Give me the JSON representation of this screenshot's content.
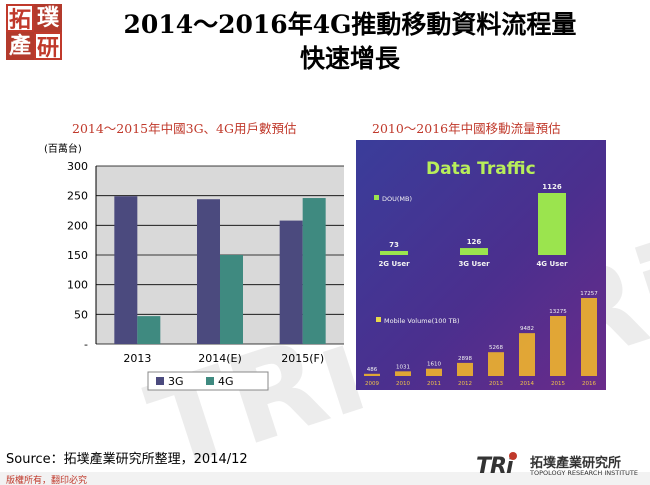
{
  "header": {
    "logo": {
      "chars": [
        "拓",
        "璞",
        "產",
        "研"
      ],
      "color": "#c0392b"
    },
    "title_line1": "2014～2016年4G推動移動資料流程量",
    "title_line2": "快速增長"
  },
  "chart_data": [
    {
      "type": "bar",
      "title": "2014～2015年中國3G、4G用戶數預估",
      "ylabel": "(百萬台)",
      "categories": [
        "2013",
        "2014(E)",
        "2015(F)"
      ],
      "series": [
        {
          "name": "3G",
          "values": [
            249,
            244,
            208
          ],
          "color": "#4b4a7e"
        },
        {
          "name": "4G",
          "values": [
            47,
            150,
            246
          ],
          "color": "#3f8a80"
        }
      ],
      "ylim": [
        0,
        300
      ],
      "yticks": [
        "-",
        "50",
        "100",
        "150",
        "200",
        "250",
        "300"
      ],
      "grid": true,
      "legend": "bottom"
    },
    {
      "type": "bar",
      "title": "2010～2016年中國移動流量預估",
      "panel_title": "Data Traffic",
      "sections": [
        {
          "legend": "DOU(MB)",
          "categories": [
            "2G User",
            "3G User",
            "4G User"
          ],
          "values": [
            73,
            126,
            1126
          ]
        },
        {
          "legend": "Mobile Volume(100 TB)",
          "categories": [
            "2009",
            "2010",
            "2011",
            "2012",
            "2013",
            "2014",
            "2015",
            "2016"
          ],
          "values": [
            486,
            1031,
            1610,
            2898,
            5268,
            9482,
            13275,
            17257
          ]
        }
      ]
    }
  ],
  "footer": {
    "source": "Source：拓墣產業研究所整理，2014/12",
    "copyright": "版權所有，翻印必究",
    "brand": "TRi",
    "brand_cn": "拓墣產業研究所",
    "brand_en": "TOPOLOGY RESEARCH INSTITUTE"
  }
}
